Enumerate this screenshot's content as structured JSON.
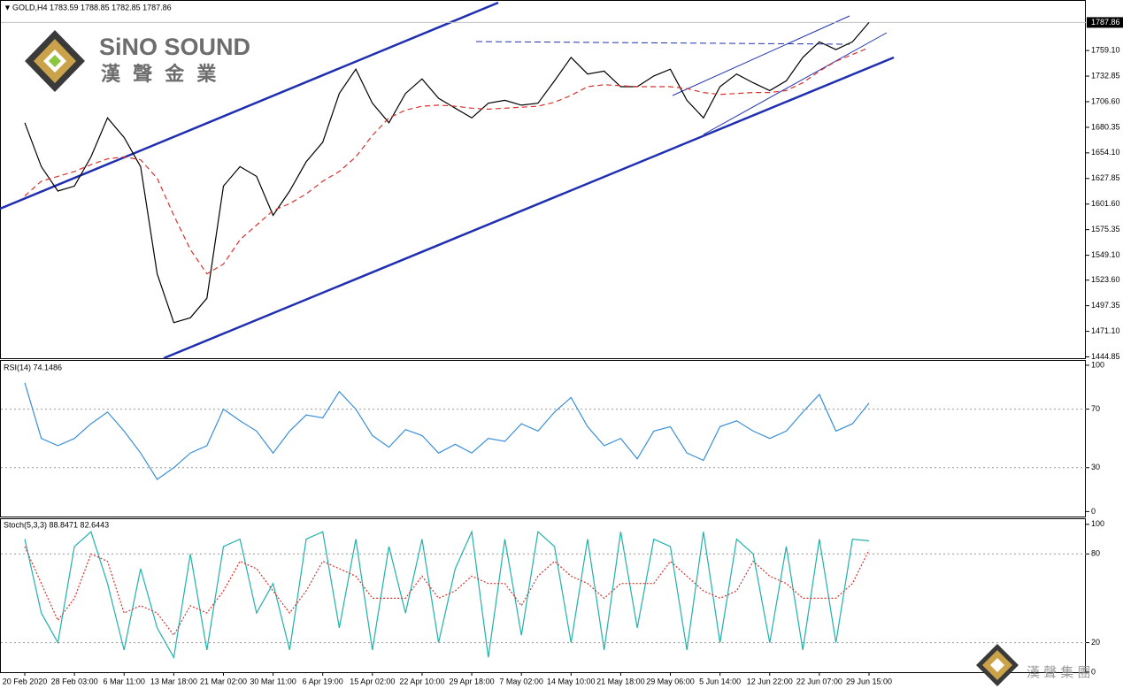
{
  "branding": {
    "brand_name": "SiNO SOUND",
    "brand_sub": "漢 聲 金 業",
    "footer_brand": "漢 聲 集 團"
  },
  "chart_data": [
    {
      "type": "line",
      "title": "GOLD,H4 1783.59 1788.85 1782.85 1787.86",
      "current_price": 1787.86,
      "categories": [
        "20 Feb 2020",
        null,
        null,
        "28 Feb 03:00",
        null,
        null,
        "6 Mar 11:00",
        null,
        null,
        "13 Mar 18:00",
        null,
        null,
        "21 Mar 02:00",
        null,
        null,
        "30 Mar 11:00",
        null,
        null,
        "6 Apr 19:00",
        null,
        null,
        "15 Apr 02:00",
        null,
        null,
        "22 Apr 10:00",
        null,
        null,
        "29 Apr 18:00",
        null,
        null,
        "7 May 02:00",
        null,
        null,
        "14 May 10:00",
        null,
        null,
        "21 May 18:00",
        null,
        null,
        "29 May 06:00",
        null,
        null,
        "5 Jun 14:00",
        null,
        null,
        "12 Jun 22:00",
        null,
        null,
        "22 Jun 07:00",
        null,
        null,
        "29 Jun 15:00"
      ],
      "series": [
        {
          "name": "Close",
          "color": "#000000",
          "style": "solid",
          "values": [
            1685,
            1640,
            1615,
            1620,
            1650,
            1690,
            1670,
            1640,
            1530,
            1480,
            1485,
            1505,
            1620,
            1640,
            1630,
            1590,
            1615,
            1645,
            1665,
            1715,
            1740,
            1705,
            1685,
            1715,
            1730,
            1710,
            1700,
            1690,
            1705,
            1708,
            1703,
            1705,
            1728,
            1752,
            1735,
            1738,
            1722,
            1722,
            1733,
            1740,
            1708,
            1690,
            1722,
            1735,
            1726,
            1718,
            1728,
            1752,
            1768,
            1760,
            1768,
            1787.86
          ]
        },
        {
          "name": "MA",
          "color": "#d9302c",
          "style": "dashed",
          "values": [
            1610,
            1625,
            1630,
            1635,
            1642,
            1648,
            1650,
            1647,
            1628,
            1590,
            1555,
            1530,
            1540,
            1565,
            1580,
            1595,
            1602,
            1612,
            1625,
            1635,
            1650,
            1672,
            1690,
            1698,
            1702,
            1703,
            1702,
            1700,
            1699,
            1700,
            1701,
            1702,
            1706,
            1713,
            1722,
            1724,
            1723,
            1722,
            1722,
            1722,
            1720,
            1716,
            1714,
            1715,
            1716,
            1716,
            1718,
            1726,
            1738,
            1748,
            1755,
            1762
          ]
        }
      ],
      "ylim": [
        1443.5,
        1810
      ],
      "yticks": [
        {
          "value": 1759.1,
          "label": "1759.10"
        },
        {
          "value": 1732.85,
          "label": "1732.85"
        },
        {
          "value": 1706.6,
          "label": "1706.60"
        },
        {
          "value": 1680.35,
          "label": "1680.35"
        },
        {
          "value": 1654.1,
          "label": "1654.10"
        },
        {
          "value": 1627.85,
          "label": "1627.85"
        },
        {
          "value": 1601.6,
          "label": "1601.60"
        },
        {
          "value": 1575.35,
          "label": "1575.35"
        },
        {
          "value": 1549.1,
          "label": "1549.10"
        },
        {
          "value": 1523.6,
          "label": "1523.60"
        },
        {
          "value": 1497.35,
          "label": "1497.35"
        },
        {
          "value": 1471.1,
          "label": "1471.10"
        },
        {
          "value": 1444.85,
          "label": "1444.85"
        }
      ]
    },
    {
      "type": "line",
      "title": "RSI(14) 74.1486",
      "series": [
        {
          "name": "RSI",
          "color": "#3a8fd9",
          "style": "solid",
          "values": [
            88,
            50,
            45,
            50,
            60,
            68,
            55,
            40,
            22,
            30,
            40,
            45,
            70,
            62,
            55,
            40,
            55,
            66,
            64,
            82,
            70,
            52,
            44,
            56,
            52,
            40,
            46,
            40,
            50,
            48,
            60,
            55,
            68,
            78,
            58,
            45,
            50,
            36,
            55,
            58,
            40,
            35,
            58,
            62,
            55,
            50,
            55,
            68,
            80,
            55,
            60,
            74.1486
          ]
        }
      ],
      "ylim": [
        -4,
        103
      ],
      "yticks": [
        100,
        70,
        30,
        0
      ],
      "levels": [
        70,
        30
      ]
    },
    {
      "type": "line",
      "title": "Stoch(5,3,3) 88.8471 82.6443",
      "series": [
        {
          "name": "Main",
          "color": "#20b2aa",
          "style": "solid",
          "values": [
            90,
            40,
            20,
            85,
            95,
            60,
            15,
            70,
            30,
            10,
            80,
            15,
            85,
            90,
            40,
            60,
            15,
            90,
            95,
            30,
            90,
            15,
            85,
            40,
            90,
            20,
            70,
            95,
            10,
            90,
            25,
            95,
            85,
            20,
            90,
            15,
            95,
            30,
            90,
            85,
            15,
            95,
            20,
            90,
            80,
            20,
            85,
            15,
            90,
            20,
            90,
            88.8471
          ]
        },
        {
          "name": "Signal",
          "color": "#d9302c",
          "style": "dotted",
          "values": [
            85,
            60,
            35,
            50,
            80,
            75,
            40,
            45,
            40,
            25,
            45,
            40,
            55,
            75,
            70,
            55,
            40,
            55,
            75,
            70,
            65,
            50,
            50,
            50,
            65,
            50,
            55,
            65,
            60,
            60,
            45,
            65,
            75,
            65,
            60,
            50,
            60,
            60,
            60,
            75,
            65,
            55,
            50,
            55,
            75,
            65,
            60,
            50,
            50,
            50,
            60,
            82.6443
          ]
        }
      ],
      "ylim": [
        0,
        103.5
      ],
      "yticks": [
        100,
        80,
        20,
        0
      ],
      "levels": [
        80,
        20
      ]
    }
  ]
}
